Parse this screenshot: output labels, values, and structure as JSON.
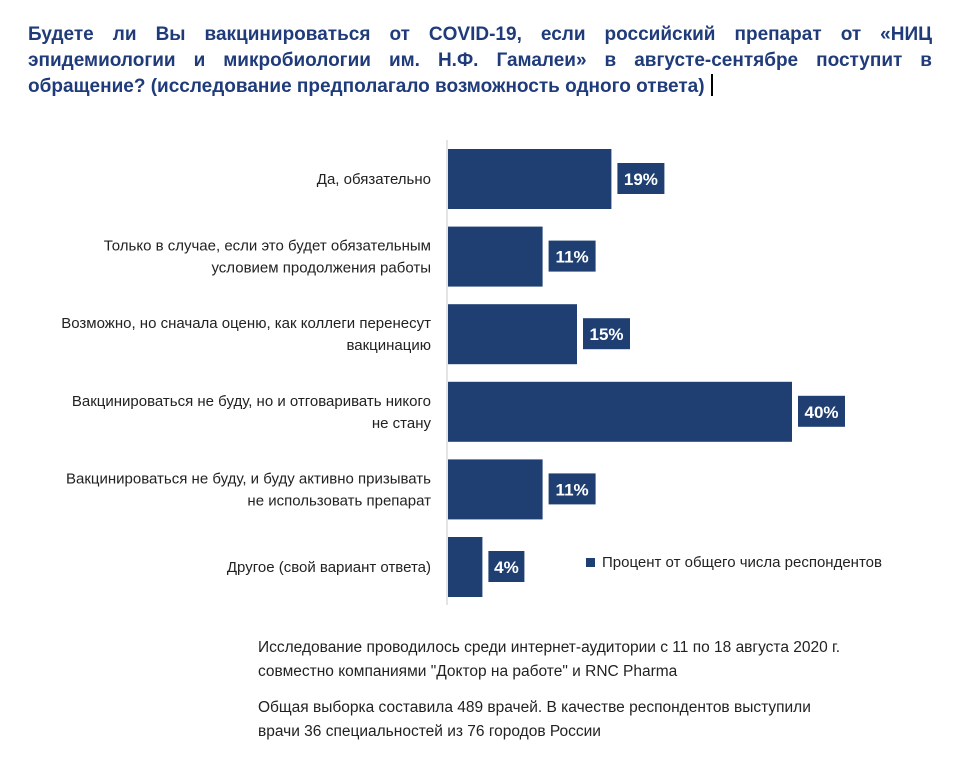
{
  "title": "Будете ли Вы вакцинироваться от COVID-19, если российский препарат от «НИЦ эпидемиологии и микробиологии им. Н.Ф. Гамалеи» в августе-сентябре поступит в обращение? (исследование предполагало возможность одного ответа)",
  "chart_data": {
    "type": "bar",
    "orientation": "horizontal",
    "categories": [
      [
        "Да, обязательно"
      ],
      [
        "Только в случае, если это будет обязательным",
        "условием продолжения работы"
      ],
      [
        "Возможно, но сначала оценю, как коллеги перенесут",
        "вакцинацию"
      ],
      [
        "Вакцинироваться не буду, но и отговаривать никого",
        "не стану"
      ],
      [
        "Вакцинироваться не буду, и буду активно призывать",
        "не использовать препарат"
      ],
      [
        "Другое (свой вариант ответа)"
      ]
    ],
    "series": [
      {
        "name": "Процент от общего числа респондентов",
        "values": [
          19,
          11,
          15,
          40,
          11,
          4
        ],
        "data_labels": [
          "19%",
          "11%",
          "15%",
          "40%",
          "11%",
          "4%"
        ]
      }
    ],
    "color": "#1f3f73",
    "xlim": [
      0,
      40
    ],
    "grid": false,
    "legend_position": "right"
  },
  "notes": {
    "note1": [
      "Исследование проводилось среди интернет-аудитории с 11 по 18 августа 2020 г.",
      "совместно компаниями \"Доктор на работе\" и RNC Pharma"
    ],
    "note2": [
      "Общая выборка составила 489 врачей. В качестве респондентов выступили",
      "врачи 36 специальностей из 76 городов России"
    ]
  }
}
